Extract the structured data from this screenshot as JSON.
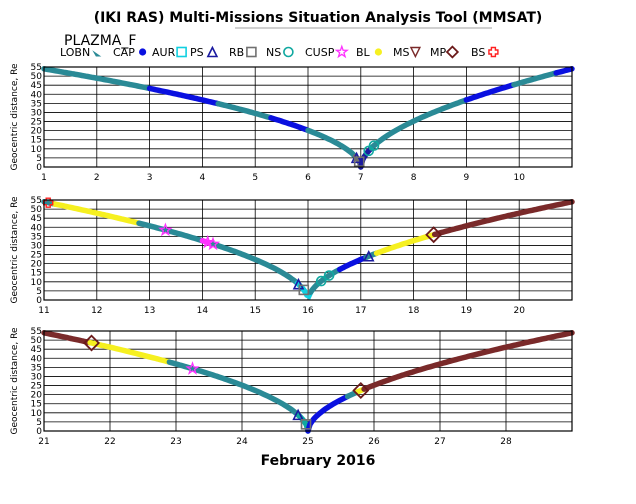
{
  "header": {
    "title": "(IKI RAS) Multi-Missions Situation Analysis Tool (MMSAT)",
    "mission": "PLAZMA_F"
  },
  "legend": [
    {
      "label": "LOBN",
      "symbol": "wedge",
      "color": "#2a8a96"
    },
    {
      "label": "CAP",
      "symbol": "dot",
      "color": "#0a10e0"
    },
    {
      "label": "AUR",
      "symbol": "square",
      "color": "#10d0e0"
    },
    {
      "label": "PS",
      "symbol": "triangle",
      "color": "#1a1aa0"
    },
    {
      "label": "RB",
      "symbol": "square",
      "color": "#707070"
    },
    {
      "label": "NS",
      "symbol": "circle",
      "color": "#10a8a0"
    },
    {
      "label": "CUSP",
      "symbol": "star",
      "color": "#ff30ff"
    },
    {
      "label": "BL",
      "symbol": "dot",
      "color": "#f6f020"
    },
    {
      "label": "MS",
      "symbol": "tri-down",
      "color": "#7a2a2a"
    },
    {
      "label": "MP",
      "symbol": "diamond",
      "color": "#6b1a1a"
    },
    {
      "label": "BS",
      "symbol": "plus",
      "color": "#ff2020"
    }
  ],
  "chart_data": {
    "type": "line",
    "xlabel": "February 2016",
    "ylabel": "Geocentric distance, Re",
    "ylim": [
      0,
      55
    ],
    "yticks": [
      "0",
      "5",
      "10",
      "15",
      "20",
      "25",
      "30",
      "35",
      "40",
      "45",
      "50",
      "55"
    ],
    "panels": [
      {
        "xlim": [
          1,
          11
        ],
        "xticks": [
          "1",
          "2",
          "3",
          "4",
          "5",
          "6",
          "7",
          "8",
          "9",
          "10"
        ],
        "segments": [
          {
            "region": "LOBN",
            "color": "#2a8a96",
            "x": [
              1.0,
              1.3,
              1.6,
              2.0,
              2.4,
              2.8,
              3.0
            ]
          },
          {
            "region": "CAP",
            "color": "#0a10e0",
            "x": [
              3.0,
              3.5,
              4.0,
              4.3
            ]
          },
          {
            "region": "LOBN",
            "color": "#2a8a96",
            "x": [
              4.3,
              4.7,
              5.0,
              5.3
            ]
          },
          {
            "region": "CAP",
            "color": "#0a10e0",
            "x": [
              5.3,
              5.6,
              6.0
            ]
          },
          {
            "region": "LOBN",
            "color": "#2a8a96",
            "x": [
              6.0,
              6.3,
              6.5,
              6.7,
              6.8,
              6.9
            ]
          },
          {
            "region": "RB",
            "color": "#707070",
            "x": [
              6.9,
              6.95,
              7.0
            ]
          },
          {
            "region": "PS",
            "color": "#1a1aa0",
            "x": [
              7.0,
              7.1,
              7.2
            ]
          },
          {
            "region": "LOBN",
            "color": "#2a8a96",
            "x": [
              7.2,
              7.5,
              7.8,
              8.2,
              8.6,
              9.0
            ]
          },
          {
            "region": "CAP",
            "color": "#0a10e0",
            "x": [
              9.0,
              9.3,
              9.6,
              9.9
            ]
          },
          {
            "region": "LOBN",
            "color": "#2a8a96",
            "x": [
              9.9,
              10.2,
              10.5,
              10.7
            ]
          },
          {
            "region": "CAP",
            "color": "#0a10e0",
            "x": [
              10.7,
              10.9,
              11.0
            ]
          }
        ],
        "perigee": 7.0,
        "markers": [
          {
            "symbol": "triangle",
            "color": "#1a1aa0",
            "x": 6.92
          },
          {
            "symbol": "square",
            "color": "#707070",
            "x": 6.97
          },
          {
            "symbol": "circle",
            "color": "#10a8a0",
            "x": 7.15
          },
          {
            "symbol": "circle",
            "color": "#10a8a0",
            "x": 7.25
          }
        ]
      },
      {
        "xlim": [
          11,
          21
        ],
        "xticks": [
          "11",
          "12",
          "13",
          "14",
          "15",
          "16",
          "17",
          "18",
          "19",
          "20"
        ],
        "segments": [
          {
            "region": "LOBN",
            "color": "#2a8a96",
            "x": [
              11.0,
              11.2
            ]
          },
          {
            "region": "BL",
            "color": "#f6f020",
            "x": [
              11.2,
              11.8,
              12.4,
              12.8
            ]
          },
          {
            "region": "LOBN",
            "color": "#2a8a96",
            "x": [
              12.8,
              13.1,
              13.4,
              13.7,
              14.0
            ]
          },
          {
            "region": "CUSP",
            "color": "#ff30ff",
            "x": [
              14.0,
              14.1,
              14.2
            ]
          },
          {
            "region": "LOBN",
            "color": "#2a8a96",
            "x": [
              14.2,
              14.6,
              15.0,
              15.3,
              15.6,
              15.8
            ]
          },
          {
            "region": "AUR",
            "color": "#10d0e0",
            "x": [
              15.8,
              15.95,
              16.05
            ]
          },
          {
            "region": "LOBN",
            "color": "#2a8a96",
            "x": [
              16.05,
              16.3,
              16.6
            ]
          },
          {
            "region": "CAP",
            "color": "#0a10e0",
            "x": [
              16.6,
              16.8,
              17.1
            ]
          },
          {
            "region": "LOBN",
            "color": "#2a8a96",
            "x": [
              17.1,
              17.3
            ]
          },
          {
            "region": "BL",
            "color": "#f6f020",
            "x": [
              17.3,
              17.7,
              18.1,
              18.4
            ]
          },
          {
            "region": "MS",
            "color": "#7a2a2a",
            "x": [
              18.4,
              18.8,
              19.3,
              19.8,
              20.4,
              21.0
            ]
          }
        ],
        "perigee": 16.0,
        "markers": [
          {
            "symbol": "plus",
            "color": "#ff2020",
            "x": 11.08
          },
          {
            "symbol": "star",
            "color": "#ff30ff",
            "x": 13.3
          },
          {
            "symbol": "star",
            "color": "#ff30ff",
            "x": 14.1
          },
          {
            "symbol": "star",
            "color": "#ff30ff",
            "x": 14.2
          },
          {
            "symbol": "triangle",
            "color": "#1a1aa0",
            "x": 15.82
          },
          {
            "symbol": "square",
            "color": "#707070",
            "x": 15.92
          },
          {
            "symbol": "circle",
            "color": "#10a8a0",
            "x": 16.25
          },
          {
            "symbol": "circle",
            "color": "#10a8a0",
            "x": 16.4
          },
          {
            "symbol": "triangle",
            "color": "#1a1aa0",
            "x": 17.15
          },
          {
            "symbol": "diamond",
            "color": "#6b1a1a",
            "x": 18.38
          }
        ]
      },
      {
        "xlim": [
          21,
          29
        ],
        "xticks": [
          "21",
          "22",
          "23",
          "24",
          "25",
          "26",
          "27",
          "28"
        ],
        "segments": [
          {
            "region": "MS",
            "color": "#7a2a2a",
            "x": [
              21.0,
              21.3,
              21.7
            ]
          },
          {
            "region": "BL",
            "color": "#f6f020",
            "x": [
              21.7,
              22.2,
              22.7,
              22.9
            ]
          },
          {
            "region": "LOBN",
            "color": "#2a8a96",
            "x": [
              22.9,
              23.2,
              23.5,
              23.8,
              24.1,
              24.4,
              24.7,
              24.85
            ]
          },
          {
            "region": "NS",
            "color": "#10a8a0",
            "x": [
              24.85,
              24.95,
              25.0
            ]
          },
          {
            "region": "CAP",
            "color": "#0a10e0",
            "x": [
              25.0,
              25.2,
              25.4,
              25.6
            ]
          },
          {
            "region": "LOBN",
            "color": "#2a8a96",
            "x": [
              25.6,
              25.75
            ]
          },
          {
            "region": "BL",
            "color": "#f6f020",
            "x": [
              25.75,
              25.85
            ]
          },
          {
            "region": "MS",
            "color": "#7a2a2a",
            "x": [
              25.85,
              26.3,
              26.8,
              27.3,
              27.8,
              28.3,
              29.0
            ]
          }
        ],
        "perigee": 25.0,
        "markers": [
          {
            "symbol": "diamond",
            "color": "#6b1a1a",
            "x": 21.72
          },
          {
            "symbol": "star",
            "color": "#ff30ff",
            "x": 23.25
          },
          {
            "symbol": "triangle",
            "color": "#1a1aa0",
            "x": 24.85
          },
          {
            "symbol": "square",
            "color": "#707070",
            "x": 24.97
          },
          {
            "symbol": "diamond",
            "color": "#6b1a1a",
            "x": 25.8
          }
        ]
      }
    ]
  }
}
